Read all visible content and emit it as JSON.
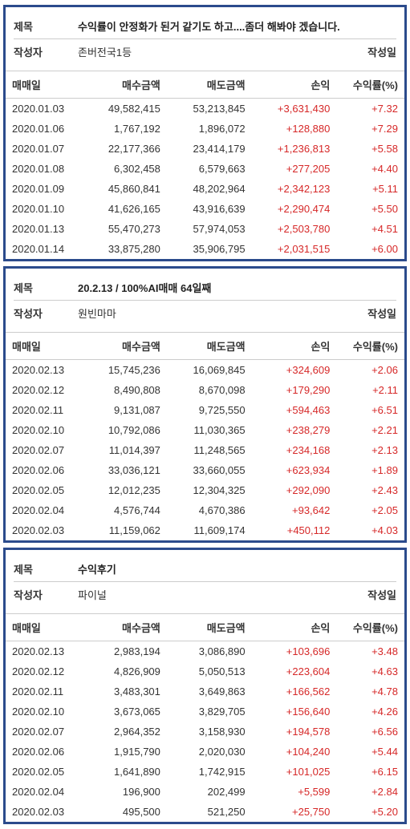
{
  "labels": {
    "title": "제목",
    "author": "작성자",
    "date_written": "작성일",
    "trade_date": "매매일",
    "buy_amount": "매수금액",
    "sell_amount": "매도금액",
    "profit": "손익",
    "return_rate": "수익률(%)"
  },
  "colors": {
    "border": "#2b4b8c",
    "text": "#333333",
    "profit_positive": "#d62828",
    "divider": "#cccccc",
    "background": "#ffffff"
  },
  "posts": [
    {
      "title": "수익률이 안정화가 된거 같기도 하고....좀더 해봐야 겠습니다.",
      "author": "존버전국1등",
      "trades": [
        {
          "date": "2020.01.03",
          "buy": "49,582,415",
          "sell": "53,213,845",
          "profit": "+3,631,430",
          "rate": "+7.32"
        },
        {
          "date": "2020.01.06",
          "buy": "1,767,192",
          "sell": "1,896,072",
          "profit": "+128,880",
          "rate": "+7.29"
        },
        {
          "date": "2020.01.07",
          "buy": "22,177,366",
          "sell": "23,414,179",
          "profit": "+1,236,813",
          "rate": "+5.58"
        },
        {
          "date": "2020.01.08",
          "buy": "6,302,458",
          "sell": "6,579,663",
          "profit": "+277,205",
          "rate": "+4.40"
        },
        {
          "date": "2020.01.09",
          "buy": "45,860,841",
          "sell": "48,202,964",
          "profit": "+2,342,123",
          "rate": "+5.11"
        },
        {
          "date": "2020.01.10",
          "buy": "41,626,165",
          "sell": "43,916,639",
          "profit": "+2,290,474",
          "rate": "+5.50"
        },
        {
          "date": "2020.01.13",
          "buy": "55,470,273",
          "sell": "57,974,053",
          "profit": "+2,503,780",
          "rate": "+4.51"
        },
        {
          "date": "2020.01.14",
          "buy": "33,875,280",
          "sell": "35,906,795",
          "profit": "+2,031,515",
          "rate": "+6.00"
        }
      ]
    },
    {
      "title": "20.2.13 / 100%AI매매 64일째",
      "author": "원빈마마",
      "trades": [
        {
          "date": "2020.02.13",
          "buy": "15,745,236",
          "sell": "16,069,845",
          "profit": "+324,609",
          "rate": "+2.06"
        },
        {
          "date": "2020.02.12",
          "buy": "8,490,808",
          "sell": "8,670,098",
          "profit": "+179,290",
          "rate": "+2.11"
        },
        {
          "date": "2020.02.11",
          "buy": "9,131,087",
          "sell": "9,725,550",
          "profit": "+594,463",
          "rate": "+6.51"
        },
        {
          "date": "2020.02.10",
          "buy": "10,792,086",
          "sell": "11,030,365",
          "profit": "+238,279",
          "rate": "+2.21"
        },
        {
          "date": "2020.02.07",
          "buy": "11,014,397",
          "sell": "11,248,565",
          "profit": "+234,168",
          "rate": "+2.13"
        },
        {
          "date": "2020.02.06",
          "buy": "33,036,121",
          "sell": "33,660,055",
          "profit": "+623,934",
          "rate": "+1.89"
        },
        {
          "date": "2020.02.05",
          "buy": "12,012,235",
          "sell": "12,304,325",
          "profit": "+292,090",
          "rate": "+2.43"
        },
        {
          "date": "2020.02.04",
          "buy": "4,576,744",
          "sell": "4,670,386",
          "profit": "+93,642",
          "rate": "+2.05"
        },
        {
          "date": "2020.02.03",
          "buy": "11,159,062",
          "sell": "11,609,174",
          "profit": "+450,112",
          "rate": "+4.03"
        }
      ]
    },
    {
      "title": "수익후기",
      "author": "파이널",
      "trades": [
        {
          "date": "2020.02.13",
          "buy": "2,983,194",
          "sell": "3,086,890",
          "profit": "+103,696",
          "rate": "+3.48"
        },
        {
          "date": "2020.02.12",
          "buy": "4,826,909",
          "sell": "5,050,513",
          "profit": "+223,604",
          "rate": "+4.63"
        },
        {
          "date": "2020.02.11",
          "buy": "3,483,301",
          "sell": "3,649,863",
          "profit": "+166,562",
          "rate": "+4.78"
        },
        {
          "date": "2020.02.10",
          "buy": "3,673,065",
          "sell": "3,829,705",
          "profit": "+156,640",
          "rate": "+4.26"
        },
        {
          "date": "2020.02.07",
          "buy": "2,964,352",
          "sell": "3,158,930",
          "profit": "+194,578",
          "rate": "+6.56"
        },
        {
          "date": "2020.02.06",
          "buy": "1,915,790",
          "sell": "2,020,030",
          "profit": "+104,240",
          "rate": "+5.44"
        },
        {
          "date": "2020.02.05",
          "buy": "1,641,890",
          "sell": "1,742,915",
          "profit": "+101,025",
          "rate": "+6.15"
        },
        {
          "date": "2020.02.04",
          "buy": "196,900",
          "sell": "202,499",
          "profit": "+5,599",
          "rate": "+2.84"
        },
        {
          "date": "2020.02.03",
          "buy": "495,500",
          "sell": "521,250",
          "profit": "+25,750",
          "rate": "+5.20"
        }
      ]
    }
  ]
}
